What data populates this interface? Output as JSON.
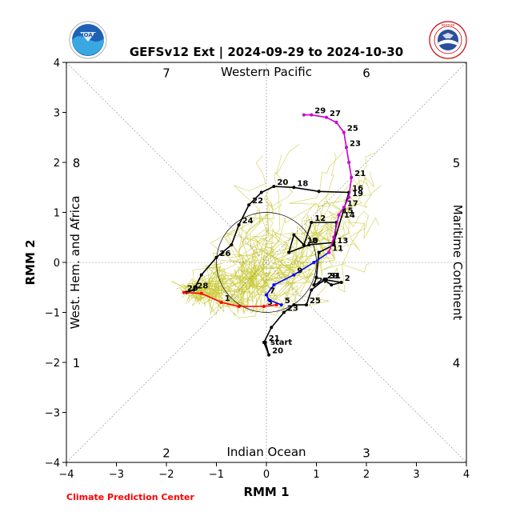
{
  "chart_data": {
    "type": "line",
    "title": "GEFSv12 Ext | 2024-09-29 to 2024-10-30",
    "xlabel": "RMM 1",
    "ylabel": "RMM 2",
    "xlim": [
      -4,
      4
    ],
    "ylim": [
      -4,
      4
    ],
    "ticks": [
      "−4",
      "−3",
      "−2",
      "−1",
      "0",
      "1",
      "2",
      "3",
      "4"
    ],
    "phase_numbers": [
      "1",
      "2",
      "3",
      "4",
      "5",
      "6",
      "7",
      "8"
    ],
    "region_labels": {
      "top": "Western Pacific",
      "bottom": "Indian Ocean",
      "left": "West. Hem. and Africa",
      "right": "Maritime Continent"
    },
    "credit": "Climate Prediction Center",
    "logos": [
      "NOAA",
      "NATIONAL WEATHER SERVICE"
    ],
    "colors": {
      "observed": "#000000",
      "ensemble": "#c8c832",
      "red": "#ff0000",
      "blue": "#0000ff",
      "magenta": "#cc00cc",
      "credit": "#ff0000"
    },
    "series": [
      {
        "color": "#000000",
        "points": [
          {
            "x": -0.02,
            "y": -1.6,
            "label": "21"
          },
          {
            "x": 0.05,
            "y": -1.85,
            "label": "20"
          },
          {
            "x": -0.05,
            "y": -1.6,
            "label": ""
          },
          {
            "x": 0.1,
            "y": -1.3,
            "label": ""
          },
          {
            "x": 0.35,
            "y": -1.0,
            "label": "23"
          },
          {
            "x": 0.55,
            "y": -0.85,
            "label": ""
          },
          {
            "x": 0.8,
            "y": -0.85,
            "label": "25"
          },
          {
            "x": 0.9,
            "y": -0.55,
            "label": ""
          },
          {
            "x": 1.15,
            "y": -0.35,
            "label": "29"
          },
          {
            "x": 1.3,
            "y": -0.45,
            "label": ""
          },
          {
            "x": 1.5,
            "y": -0.4,
            "label": "2"
          },
          {
            "x": 1.2,
            "y": -0.35,
            "label": "31"
          },
          {
            "x": 0.95,
            "y": -0.45,
            "label": "27"
          },
          {
            "x": 1.0,
            "y": -0.3,
            "label": ""
          },
          {
            "x": 1.05,
            "y": 0.2,
            "label": ""
          },
          {
            "x": 1.35,
            "y": 0.35,
            "label": "13"
          },
          {
            "x": 1.4,
            "y": 0.8,
            "label": ""
          },
          {
            "x": 0.9,
            "y": 0.8,
            "label": "12"
          },
          {
            "x": 0.75,
            "y": 0.35,
            "label": "10"
          },
          {
            "x": 0.55,
            "y": 0.55,
            "label": ""
          },
          {
            "x": 0.45,
            "y": 0.2,
            "label": ""
          },
          {
            "x": 0.85,
            "y": 0.35,
            "label": "8"
          },
          {
            "x": 1.35,
            "y": 0.4,
            "label": ""
          },
          {
            "x": 1.65,
            "y": 1.4,
            "label": "16"
          },
          {
            "x": 1.05,
            "y": 1.42,
            "label": ""
          },
          {
            "x": 0.55,
            "y": 1.5,
            "label": "18"
          },
          {
            "x": 0.15,
            "y": 1.52,
            "label": "20"
          },
          {
            "x": -0.1,
            "y": 1.4,
            "label": ""
          },
          {
            "x": -0.35,
            "y": 1.15,
            "label": "22"
          },
          {
            "x": -0.55,
            "y": 0.75,
            "label": "24"
          },
          {
            "x": -0.7,
            "y": 0.35,
            "label": ""
          },
          {
            "x": -1.0,
            "y": 0.1,
            "label": "26"
          },
          {
            "x": -1.3,
            "y": -0.25,
            "label": ""
          },
          {
            "x": -1.45,
            "y": -0.55,
            "label": "28"
          },
          {
            "x": -1.6,
            "y": -0.6,
            "label": ""
          }
        ]
      },
      {
        "color": "#ff0000",
        "points": [
          {
            "x": -1.65,
            "y": -0.6,
            "label": "29"
          },
          {
            "x": -1.3,
            "y": -0.62,
            "label": ""
          },
          {
            "x": -0.9,
            "y": -0.8,
            "label": "1"
          },
          {
            "x": -0.55,
            "y": -0.88,
            "label": ""
          },
          {
            "x": -0.05,
            "y": -0.88,
            "label": "3"
          },
          {
            "x": 0.2,
            "y": -0.85,
            "label": ""
          }
        ]
      },
      {
        "color": "#0000ff",
        "points": [
          {
            "x": 0.3,
            "y": -0.85,
            "label": "5"
          },
          {
            "x": 0.05,
            "y": -0.75,
            "label": ""
          },
          {
            "x": 0.0,
            "y": -0.65,
            "label": "7"
          },
          {
            "x": 0.15,
            "y": -0.45,
            "label": ""
          },
          {
            "x": 0.55,
            "y": -0.25,
            "label": "9"
          },
          {
            "x": 0.95,
            "y": 0.0,
            "label": ""
          },
          {
            "x": 1.25,
            "y": 0.2,
            "label": "11"
          }
        ]
      },
      {
        "color": "#cc00cc",
        "points": [
          {
            "x": 1.25,
            "y": 0.2,
            "label": ""
          },
          {
            "x": 1.35,
            "y": 0.5,
            "label": ""
          },
          {
            "x": 1.45,
            "y": 0.95,
            "label": "15"
          },
          {
            "x": 1.55,
            "y": 1.1,
            "label": "17"
          },
          {
            "x": 1.65,
            "y": 1.3,
            "label": "19"
          },
          {
            "x": 1.7,
            "y": 1.7,
            "label": "21"
          },
          {
            "x": 1.65,
            "y": 2.0,
            "label": ""
          },
          {
            "x": 1.6,
            "y": 2.3,
            "label": "23"
          },
          {
            "x": 1.55,
            "y": 2.6,
            "label": "25"
          },
          {
            "x": 1.4,
            "y": 2.8,
            "label": ""
          },
          {
            "x": 1.2,
            "y": 2.9,
            "label": "27"
          },
          {
            "x": 0.9,
            "y": 2.95,
            "label": "29"
          },
          {
            "x": 0.75,
            "y": 2.95,
            "label": ""
          }
        ]
      }
    ],
    "extra_labels": [
      {
        "text": "start",
        "x": 0.08,
        "y": -1.65
      },
      {
        "text": "14",
        "x": 1.55,
        "y": 0.9
      }
    ]
  }
}
